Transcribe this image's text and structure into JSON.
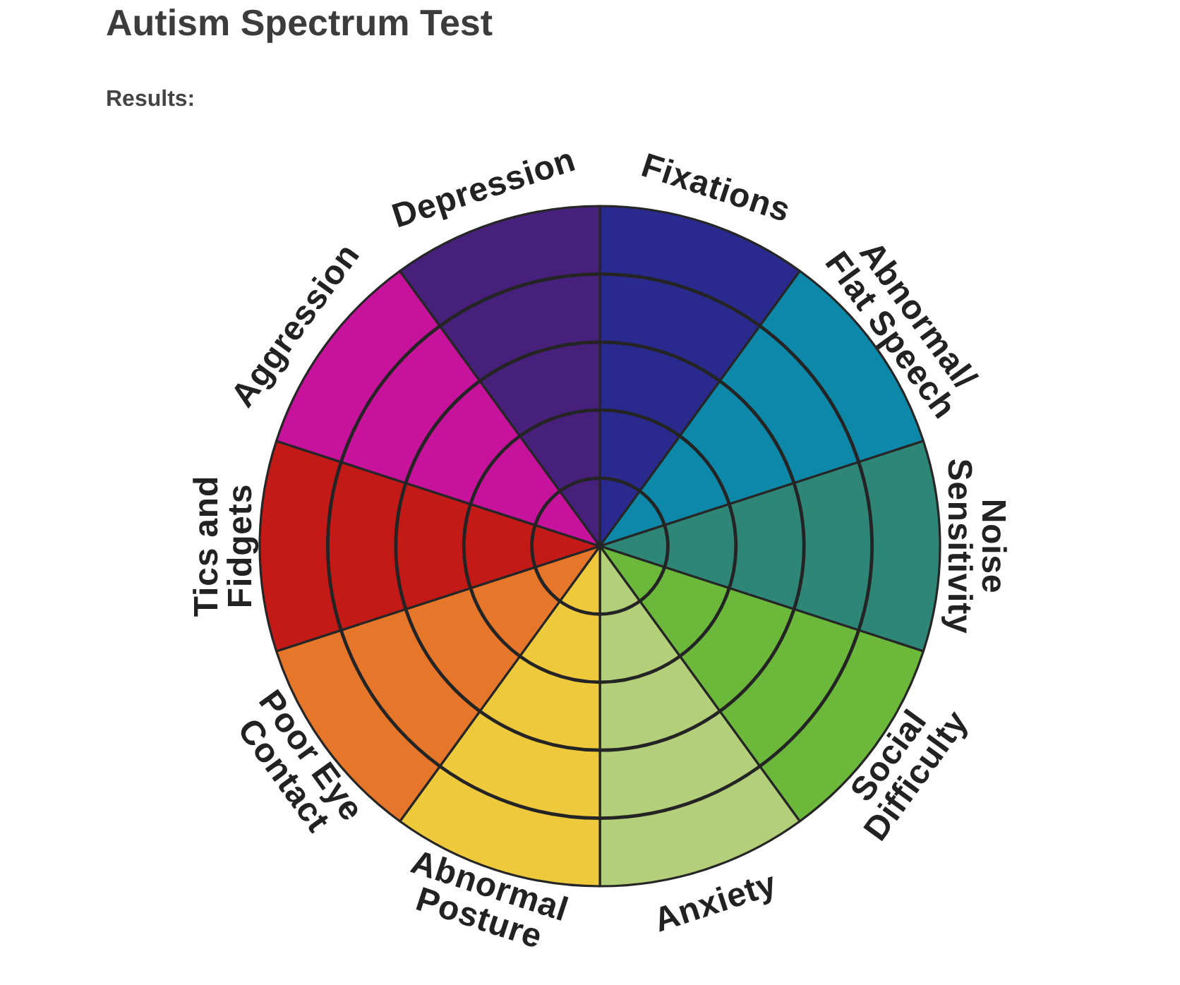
{
  "chart_data": {
    "type": "pie",
    "title": "Autism Spectrum Test",
    "subtitle": "Results:",
    "categories": [
      "Fixations",
      "Abnormal/ Flat Speech",
      "Noise Sensitivity",
      "Social Difficulty",
      "Anxiety",
      "Abnormal Posture",
      "Poor Eye Contact",
      "Tics and Fidgets",
      "Aggression",
      "Depression"
    ],
    "values": [
      10,
      10,
      10,
      10,
      10,
      10,
      10,
      10,
      10,
      10
    ],
    "colors": [
      "#2a2a8e",
      "#0e88a8",
      "#2e8676",
      "#6bb83a",
      "#b3cf7a",
      "#efc93c",
      "#e5762a",
      "#c41a17",
      "#c7139c",
      "#46207a"
    ],
    "grid": true
  }
}
